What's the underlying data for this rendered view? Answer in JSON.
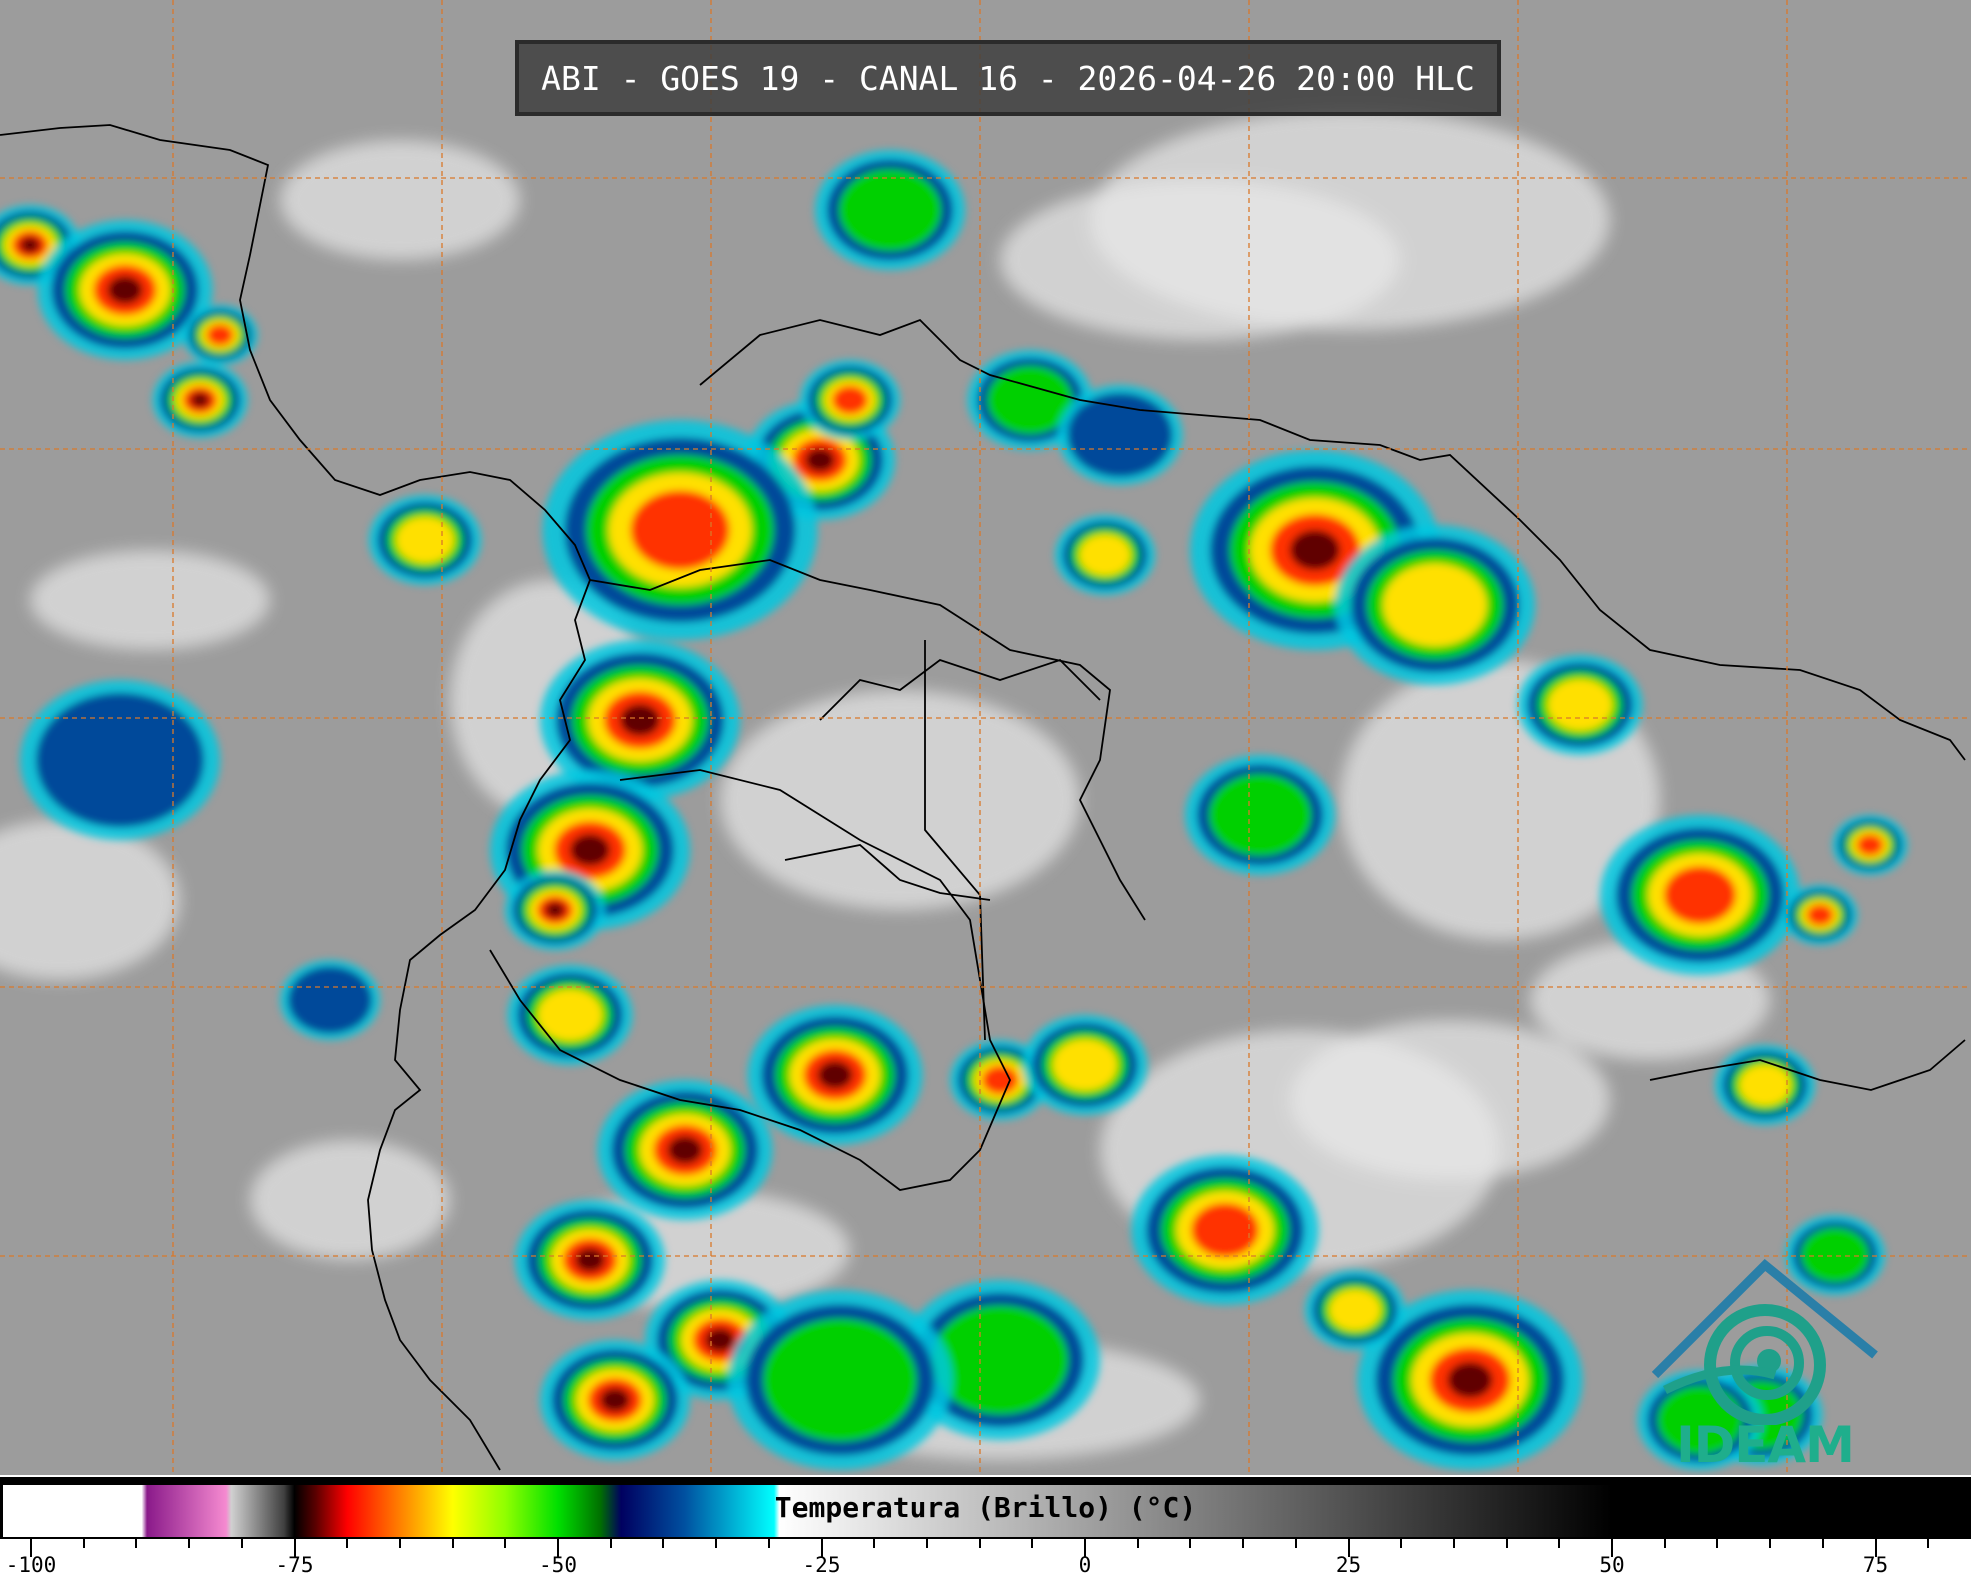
{
  "title": "ABI - GOES 19 - CANAL 16 - 2026-04-26 20:00 HLC",
  "colorbar": {
    "label": "Temperatura (Brillo) (°C)",
    "range": [
      -103,
      83
    ],
    "tick_labels": [
      "-100",
      "-75",
      "-50",
      "-25",
      "0",
      "25",
      "50",
      "75"
    ],
    "tick_values": [
      -100,
      -75,
      -50,
      -25,
      0,
      25,
      50,
      75
    ],
    "minor_tick_step": 5,
    "stops": [
      {
        "t": -103,
        "color": "#ffffff"
      },
      {
        "t": -89.5,
        "color": "#ffffff"
      },
      {
        "t": -89,
        "color": "#8a1a8a"
      },
      {
        "t": -81.5,
        "color": "#f58ad0"
      },
      {
        "t": -81,
        "color": "#d0d0d0"
      },
      {
        "t": -76,
        "color": "#404040"
      },
      {
        "t": -75,
        "color": "#000000"
      },
      {
        "t": -73,
        "color": "#5a0000"
      },
      {
        "t": -70,
        "color": "#ff0000"
      },
      {
        "t": -65,
        "color": "#ff8000"
      },
      {
        "t": -60,
        "color": "#ffff00"
      },
      {
        "t": -55,
        "color": "#90ff00"
      },
      {
        "t": -50,
        "color": "#00e000"
      },
      {
        "t": -46,
        "color": "#007000"
      },
      {
        "t": -44,
        "color": "#000060"
      },
      {
        "t": -38,
        "color": "#0050a0"
      },
      {
        "t": -29.5,
        "color": "#00ffff"
      },
      {
        "t": -29,
        "color": "#ffffff"
      },
      {
        "t": 50,
        "color": "#000000"
      },
      {
        "t": 83,
        "color": "#000000"
      }
    ]
  },
  "logo": {
    "text": "IDEAM",
    "color": "#1fae8c"
  },
  "colors": {
    "grid": "#d9782a",
    "background_cloudfree": "#9a9a9a",
    "coastline": "#000000"
  }
}
